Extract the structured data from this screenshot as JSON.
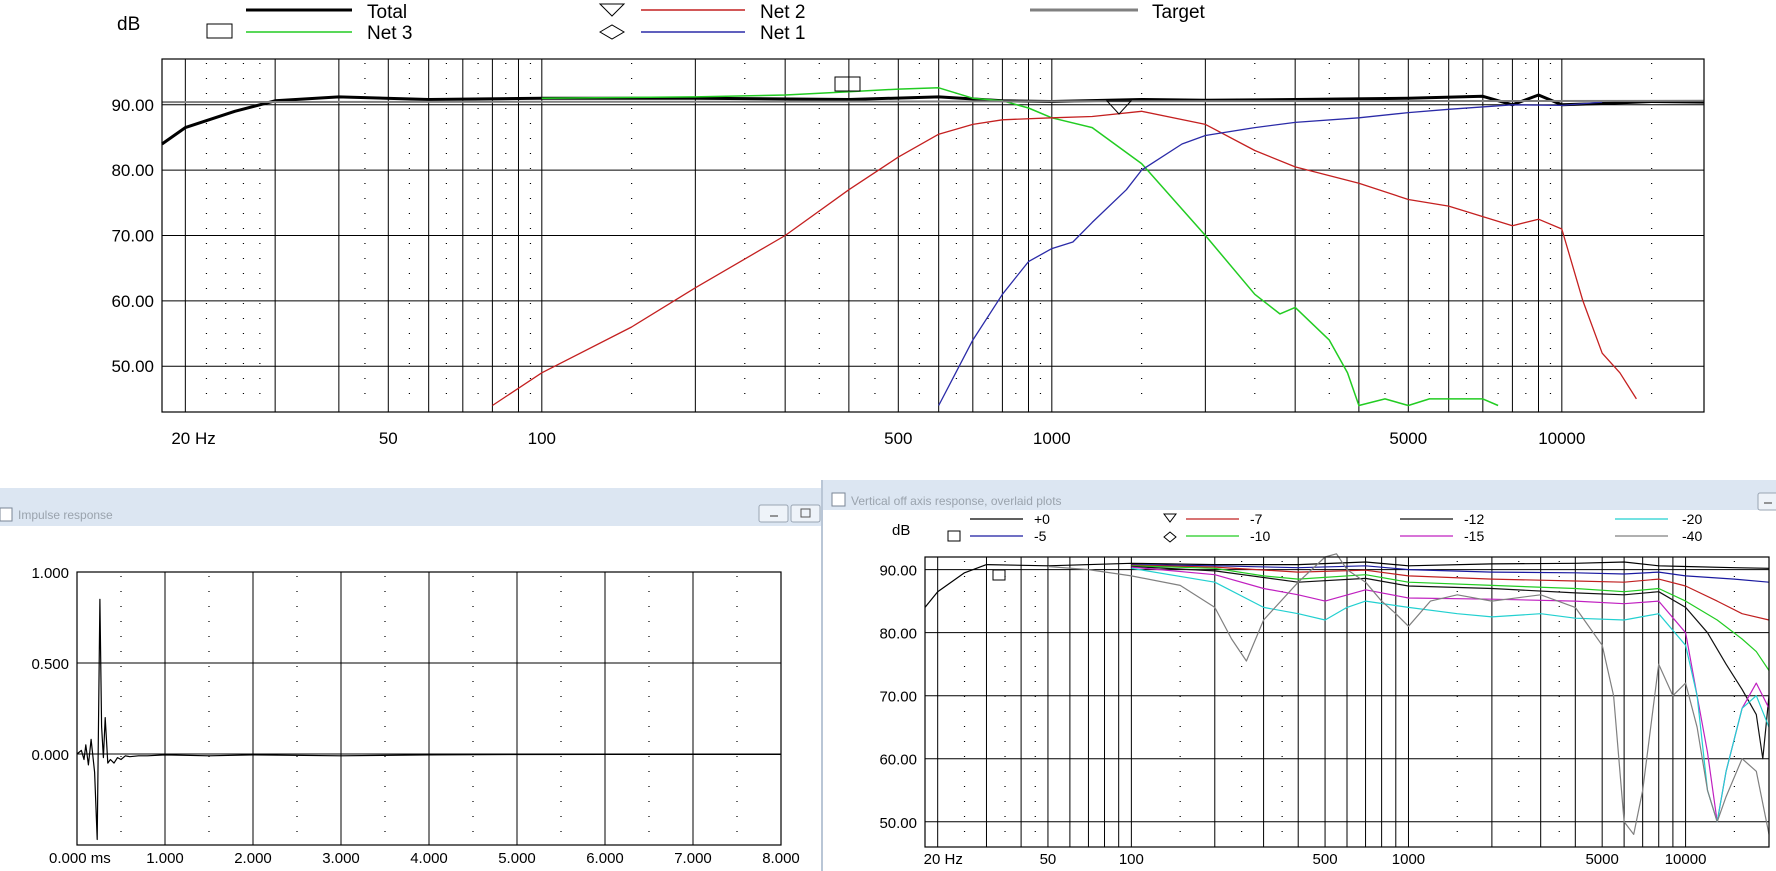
{
  "windows": {
    "impulse_title": "Impulse response",
    "offaxis_title": "Vertical off axis response, overlaid plots"
  },
  "colors": {
    "total": "#000000",
    "target": "#808080",
    "net1": "#2b2ba8",
    "net2": "#c42020",
    "net3": "#22cc22",
    "deg_0": "#000000",
    "deg_5": "#1a1aa0",
    "deg_7": "#c02020",
    "deg_10": "#22cc22",
    "deg_12": "#111111",
    "deg_15": "#c020c0",
    "deg_20": "#22d0d0",
    "deg_40": "#808080"
  },
  "chart_data": [
    {
      "type": "line",
      "ylabel": "dB",
      "x_scale": "log",
      "xlim": [
        18,
        19000
      ],
      "ylim": [
        43,
        97
      ],
      "y_ticks": [
        "90.00",
        "80.00",
        "70.00",
        "60.00",
        "50.00"
      ],
      "y_tick_values": [
        90,
        80,
        70,
        60,
        50
      ],
      "x_ticks": [
        "20 Hz",
        "50",
        "100",
        "500",
        "1000",
        "5000",
        "10000"
      ],
      "x_tick_values": [
        20,
        50,
        100,
        500,
        1000,
        5000,
        10000
      ],
      "legend": [
        "Total",
        "Net 3",
        "Net 2",
        "Net 1",
        "Target"
      ],
      "series": [
        {
          "name": "Total",
          "key": "total",
          "x": [
            18,
            20,
            25,
            30,
            40,
            60,
            100,
            200,
            400,
            600,
            800,
            1000,
            1500,
            2000,
            3000,
            5000,
            7000,
            8000,
            9000,
            10000,
            12000,
            15000,
            19000
          ],
          "y": [
            84,
            86.5,
            89,
            90.6,
            91.2,
            90.8,
            91,
            91,
            90.8,
            91.2,
            90.6,
            90.5,
            90.8,
            90.7,
            90.8,
            91,
            91.3,
            90,
            91.5,
            90,
            90.2,
            90.5,
            90.4
          ]
        },
        {
          "name": "Net 3",
          "key": "net3",
          "x": [
            100,
            200,
            300,
            400,
            500,
            600,
            700,
            800,
            900,
            1000,
            1200,
            1500,
            2000,
            2500,
            2800,
            3000,
            3500,
            3800,
            4000,
            4500,
            5000,
            5500,
            7000,
            7500
          ],
          "y": [
            91,
            91.2,
            91.5,
            92,
            92.4,
            92.6,
            91,
            90.6,
            89.5,
            88,
            86.5,
            81,
            70,
            61,
            58,
            59,
            54,
            49,
            44,
            45,
            44,
            45,
            45,
            44
          ]
        },
        {
          "name": "Net 2",
          "key": "net2",
          "x": [
            80,
            100,
            150,
            200,
            300,
            400,
            500,
            600,
            700,
            800,
            1000,
            1200,
            1500,
            2000,
            2500,
            3000,
            4000,
            5000,
            6000,
            8000,
            9000,
            10000,
            11000,
            12000,
            13000,
            14000
          ],
          "y": [
            44,
            49,
            56,
            62,
            70,
            77,
            82,
            85.5,
            87,
            87.7,
            88,
            88.2,
            89,
            87,
            83,
            80.5,
            78,
            75.5,
            74.5,
            71.5,
            72.5,
            71,
            60,
            52,
            49,
            45
          ]
        },
        {
          "name": "Net 1",
          "key": "net1",
          "x": [
            600,
            700,
            800,
            900,
            1000,
            1100,
            1200,
            1400,
            1500,
            1800,
            2000,
            2500,
            3000,
            4000,
            5000,
            6000,
            8000,
            10000,
            12000
          ],
          "y": [
            44,
            54,
            61,
            66,
            68,
            69,
            72,
            77,
            80,
            84,
            85.3,
            86.5,
            87.3,
            88,
            88.8,
            89.3,
            90,
            89.9,
            90.4
          ]
        },
        {
          "name": "Target",
          "key": "target",
          "x": [
            18,
            19000
          ],
          "y": [
            90.4,
            90.6
          ]
        }
      ]
    },
    {
      "type": "line",
      "x_scale": "linear",
      "xlim": [
        0,
        8
      ],
      "ylim": [
        -0.5,
        1.0
      ],
      "y_ticks": [
        "1.000",
        "0.500",
        "0.000"
      ],
      "y_tick_values": [
        1.0,
        0.5,
        0.0
      ],
      "x_ticks": [
        "0.000 ms",
        "1.000",
        "2.000",
        "3.000",
        "4.000",
        "5.000",
        "6.000",
        "7.000",
        "8.000"
      ],
      "x_tick_values": [
        0,
        1,
        2,
        3,
        4,
        5,
        6,
        7,
        8
      ],
      "series": [
        {
          "name": "",
          "key": "total",
          "x": [
            0,
            0.05,
            0.08,
            0.1,
            0.13,
            0.16,
            0.2,
            0.23,
            0.26,
            0.28,
            0.3,
            0.32,
            0.35,
            0.38,
            0.42,
            0.46,
            0.5,
            0.55,
            0.6,
            0.7,
            0.8,
            1.0,
            1.5,
            2.0,
            3.0,
            4.0,
            5.0,
            6.0,
            7.0,
            8.0
          ],
          "y": [
            0,
            0.02,
            -0.03,
            0.05,
            -0.06,
            0.08,
            -0.1,
            -0.47,
            0.85,
            0.15,
            -0.02,
            0.2,
            -0.05,
            -0.03,
            -0.05,
            -0.02,
            -0.03,
            -0.01,
            -0.015,
            -0.01,
            -0.01,
            -0.005,
            -0.01,
            -0.005,
            -0.01,
            -0.005,
            -0.003,
            -0.002,
            -0.002,
            -0.002
          ]
        }
      ]
    },
    {
      "type": "line",
      "ylabel": "dB",
      "x_scale": "log",
      "xlim": [
        18,
        20000
      ],
      "ylim": [
        46,
        92
      ],
      "y_ticks": [
        "90.00",
        "80.00",
        "70.00",
        "60.00",
        "50.00"
      ],
      "y_tick_values": [
        90,
        80,
        70,
        60,
        50
      ],
      "x_ticks": [
        "20 Hz",
        "50",
        "100",
        "500",
        "1000",
        "5000",
        "10000"
      ],
      "x_tick_values": [
        20,
        50,
        100,
        500,
        1000,
        5000,
        10000
      ],
      "legend": [
        "+0",
        "-5",
        "-7",
        "-10",
        "-12",
        "-15",
        "-20",
        "-40"
      ],
      "series": [
        {
          "name": "+0",
          "key": "deg_0",
          "x": [
            18,
            20,
            25,
            30,
            50,
            100,
            200,
            400,
            700,
            1000,
            2000,
            4000,
            6000,
            8000,
            10000,
            15000,
            20000
          ],
          "y": [
            84,
            86.5,
            89.5,
            90.8,
            90.6,
            91,
            90.8,
            90.8,
            91.2,
            90.6,
            90.9,
            91,
            91.2,
            90.6,
            90.5,
            90.3,
            90.2
          ]
        },
        {
          "name": "-5",
          "key": "deg_5",
          "x": [
            100,
            200,
            400,
            700,
            1000,
            2000,
            4000,
            6000,
            8000,
            10000,
            15000,
            20000
          ],
          "y": [
            90.8,
            90.6,
            90.3,
            90.6,
            90,
            89.6,
            89.5,
            89.3,
            89.6,
            89,
            88.5,
            88
          ]
        },
        {
          "name": "-7",
          "key": "deg_7",
          "x": [
            100,
            200,
            400,
            700,
            1000,
            2000,
            4000,
            6000,
            8000,
            10000,
            13000,
            16000,
            20000
          ],
          "y": [
            90.7,
            90.4,
            89.6,
            89.9,
            89,
            88.5,
            88.2,
            88,
            88.5,
            87.4,
            85,
            83,
            82
          ]
        },
        {
          "name": "-10",
          "key": "deg_10",
          "x": [
            100,
            200,
            300,
            400,
            700,
            1000,
            2000,
            4000,
            6000,
            8000,
            10000,
            13000,
            16000,
            18000,
            20000
          ],
          "y": [
            90.6,
            90.2,
            89,
            88.5,
            89.2,
            88,
            87.5,
            87,
            86.5,
            87,
            85,
            82,
            79,
            77,
            74
          ]
        },
        {
          "name": "-12",
          "key": "deg_12",
          "x": [
            100,
            200,
            400,
            700,
            1000,
            2000,
            4000,
            6000,
            8000,
            10000,
            12000,
            14000,
            16000,
            18000,
            19000,
            20000
          ],
          "y": [
            90.5,
            89.8,
            88,
            88.6,
            87.4,
            87,
            86.3,
            86,
            86.5,
            84,
            80,
            75,
            71,
            67,
            60,
            70
          ]
        },
        {
          "name": "-15",
          "key": "deg_15",
          "x": [
            100,
            200,
            300,
            400,
            500,
            700,
            1000,
            2000,
            4000,
            6000,
            8000,
            10000,
            11000,
            12000,
            13000,
            14000,
            16000,
            18000,
            20000
          ],
          "y": [
            90.4,
            89.2,
            87,
            86,
            85,
            86.8,
            85.5,
            85.3,
            85,
            84.6,
            85,
            80,
            70,
            61,
            50,
            58,
            68,
            72,
            68
          ]
        },
        {
          "name": "-20",
          "key": "deg_20",
          "x": [
            100,
            200,
            300,
            400,
            500,
            600,
            700,
            1000,
            1500,
            2000,
            3000,
            4000,
            6000,
            8000,
            10000,
            11000,
            12000,
            13000,
            14000,
            16000,
            18000,
            20000
          ],
          "y": [
            90.2,
            88,
            84,
            83,
            82,
            84,
            85,
            84,
            83,
            82.5,
            83,
            82.3,
            82,
            83,
            78,
            70,
            55,
            50,
            58,
            68,
            70,
            65
          ]
        },
        {
          "name": "-40",
          "key": "deg_40",
          "x": [
            50,
            70,
            100,
            150,
            200,
            230,
            260,
            300,
            400,
            500,
            550,
            600,
            700,
            800,
            900,
            1000,
            1200,
            1500,
            2000,
            3000,
            4000,
            5000,
            5500,
            6000,
            6500,
            7000,
            8000,
            9000,
            10000,
            11000,
            12000,
            13000,
            14000,
            16000,
            18000,
            20000
          ],
          "y": [
            90.5,
            90,
            89,
            87.5,
            84,
            79,
            75.5,
            82,
            88,
            92,
            92.5,
            90,
            88,
            85,
            83,
            81,
            85,
            86,
            85,
            86,
            84,
            78,
            70,
            50,
            48,
            55,
            75,
            70,
            72,
            65,
            55,
            50,
            54,
            60,
            58,
            48
          ]
        }
      ]
    }
  ]
}
